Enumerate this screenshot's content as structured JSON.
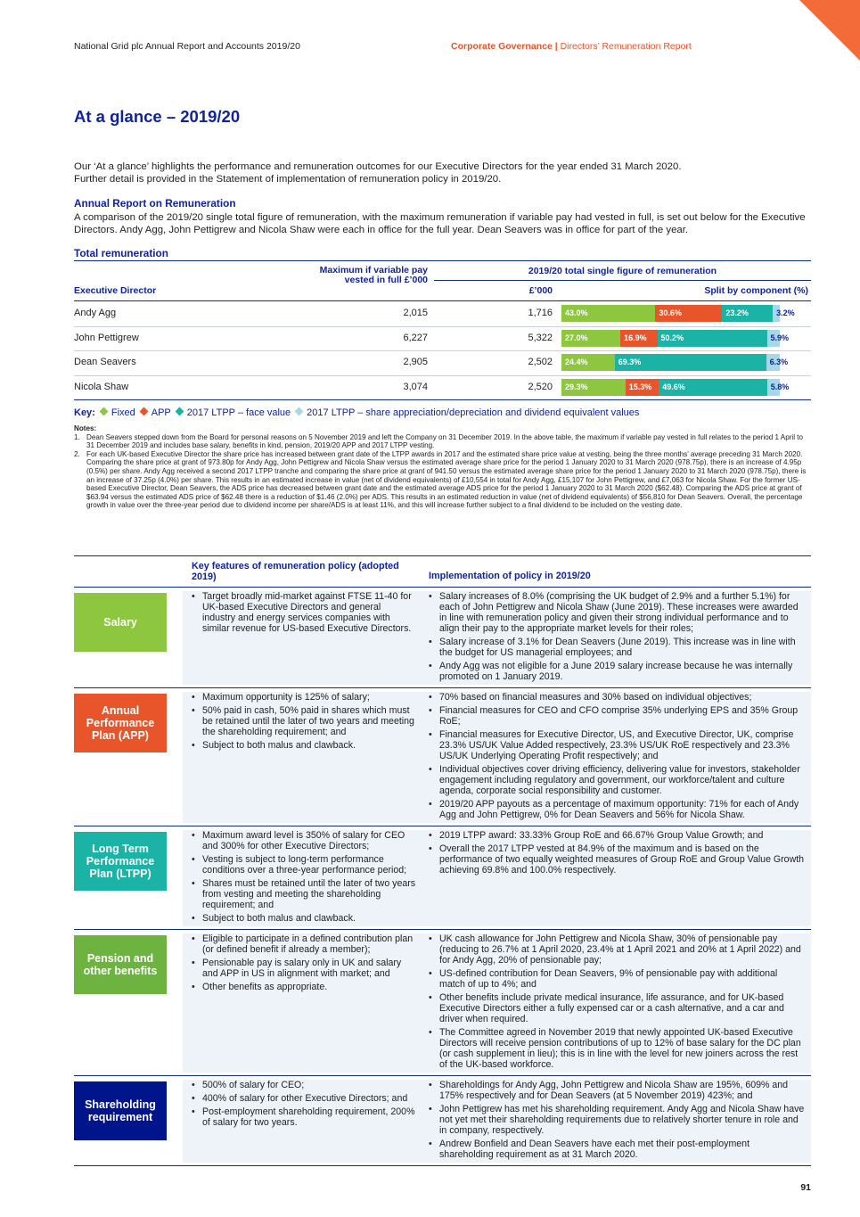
{
  "header": {
    "left": "National Grid plc Annual Report and Accounts 2019/20",
    "section": "Corporate Governance",
    "separator": "|",
    "subsection": "Directors’ Remuneration Report"
  },
  "title": "At a glance – 2019/20",
  "intro": [
    "Our ‘At a glance’ highlights the performance and remuneration outcomes for our Executive Directors for the year ended 31 March 2020.",
    "Further detail is provided in the Statement of implementation of remuneration policy in 2019/20."
  ],
  "annual_report": {
    "heading": "Annual Report on Remuneration",
    "text": "A comparison of the 2019/20 single total figure of remuneration, with the maximum remuneration if variable pay had vested in full, is set out below for the Executive Directors. Andy Agg, John Pettigrew and Nicola Shaw were each in office for the full year. Dean Seavers was in office for part of the year."
  },
  "remuneration": {
    "heading": "Total remuneration",
    "columns": {
      "director": "Executive Director",
      "maximum": "Maximum if variable pay vested in full £’000",
      "group": "2019/20 total single figure of remuneration",
      "total": "£’000",
      "split": "Split by component (%)"
    },
    "rows": [
      {
        "name": "Andy Agg",
        "maximum": "2,015",
        "total": "1,716",
        "split": [
          43.0,
          30.6,
          23.2,
          3.2
        ],
        "split_labels": [
          "43.0%",
          "30.6%",
          "23.2%",
          "3.2%"
        ]
      },
      {
        "name": "John Pettigrew",
        "maximum": "6,227",
        "total": "5,322",
        "split": [
          27.0,
          16.9,
          50.2,
          5.9
        ],
        "split_labels": [
          "27.0%",
          "16.9%",
          "50.2%",
          "5.9%"
        ]
      },
      {
        "name": "Dean Seavers",
        "maximum": "2,905",
        "total": "2,502",
        "split": [
          24.4,
          null,
          69.3,
          6.3
        ],
        "split_labels": [
          "24.4%",
          null,
          "69.3%",
          "6.3%"
        ]
      },
      {
        "name": "Nicola Shaw",
        "maximum": "3,074",
        "total": "2,520",
        "split": [
          29.3,
          15.3,
          49.6,
          5.8
        ],
        "split_labels": [
          "29.3%",
          "15.3%",
          "49.6%",
          "5.8%"
        ]
      }
    ],
    "key": {
      "label": "Key:",
      "components": [
        {
          "name": "Fixed",
          "color": "#8dc63f"
        },
        {
          "name": "APP",
          "color": "#e8552a"
        },
        {
          "name": "2017 LTPP – face value",
          "color": "#1ab3a6"
        },
        {
          "name": "2017 LTPP – share appreciation/depreciation and dividend equivalent values",
          "color": "#a8d8e8"
        }
      ]
    }
  },
  "notes": {
    "heading": "Notes:",
    "items": [
      {
        "number": "1.",
        "text": "Dean Seavers stepped down from the Board for personal reasons on 5 November 2019 and left the Company on 31 December 2019. In the above table, the maximum if variable pay vested in full relates to the period 1 April to 31 December 2019 and includes base salary, benefits in kind, pension, 2019/20 APP and 2017 LTPP vesting."
      },
      {
        "number": "2.",
        "text": "For each UK-based Executive Director the share price has increased between grant date of the LTPP awards in 2017 and the estimated share price value at vesting, being the three months’ average preceding 31 March 2020. Comparing the share price at grant of 973.80p for Andy Agg, John Pettigrew and Nicola Shaw versus the estimated average share price for the period 1 January 2020 to 31 March 2020 (978.75p), there is an increase of 4.95p (0.5%) per share. Andy Agg received a second 2017 LTPP tranche and comparing the share price at grant of 941.50 versus the estimated average share price for the period 1 January 2020 to 31 March 2020 (978.75p), there is an increase of 37.25p (4.0%) per share. This results in an estimated increase in value (net of dividend equivalents) of £10,554 in total for Andy Agg, £15,107 for John Pettigrew, and £7,063 for Nicola Shaw. For the former US-based Executive Director, Dean Seavers, the ADS price has decreased between grant date and the estimated average ADS price for the period 1 January 2020 to 31 March 2020 ($62.48). Comparing the ADS price at grant of $63.94 versus the estimated ADS price of $62.48 there is a reduction of $1.46 (2.0%) per ADS. This results in an estimated reduction in value (net of dividend equivalents) of $56,810 for Dean Seavers. Overall, the percentage growth in value over the three-year period due to dividend income per share/ADS is at least 11%, and this will increase further subject to a final dividend to be included on the vesting date."
      }
    ]
  },
  "policy": {
    "columns": {
      "features": "Key features of remuneration policy (adopted 2019)",
      "implementation": "Implementation of policy in 2019/20"
    },
    "rows": [
      {
        "label": "Salary",
        "color": "#8dc63f",
        "features": [
          "Target broadly mid-market against FTSE 11-40 for UK-based Executive Directors and general industry and energy services companies with similar revenue for US-based Executive Directors."
        ],
        "implementation": [
          "Salary increases of 8.0% (comprising the UK budget of 2.9% and a further 5.1%) for each of John Pettigrew and Nicola Shaw (June 2019). These increases were awarded in line with remuneration policy and given their strong individual performance and to align their pay to the appropriate market levels for their roles;",
          "Salary increase of 3.1% for Dean Seavers (June 2019). This increase was in line with the budget for US managerial employees; and",
          "Andy Agg was not eligible for a June 2019 salary increase because he was internally promoted on 1 January 2019."
        ]
      },
      {
        "label": "Annual Performance Plan (APP)",
        "color": "#e8552a",
        "features": [
          "Maximum opportunity is 125% of salary;",
          "50% paid in cash, 50% paid in shares which must be retained until the later of two years and meeting the shareholding requirement; and",
          "Subject to both malus and clawback."
        ],
        "implementation": [
          "70% based on financial measures and 30% based on individual objectives;",
          "Financial measures for CEO and CFO comprise 35% underlying EPS and 35% Group RoE;",
          "Financial measures for Executive Director, US, and Executive Director, UK, comprise 23.3% US/UK Value Added respectively, 23.3% US/UK RoE respectively and 23.3% US/UK Underlying Operating Profit respectively; and",
          "Individual objectives cover driving efficiency, delivering value for investors, stakeholder engagement including regulatory and government, our workforce/talent and culture agenda, corporate social responsibility and customer.",
          "2019/20 APP payouts as a percentage of maximum opportunity: 71% for each of Andy Agg and John Pettigrew, 0% for Dean Seavers and 56% for Nicola Shaw."
        ]
      },
      {
        "label": "Long Term Performance Plan (LTPP)",
        "color": "#1ab3a6",
        "features": [
          "Maximum award level is 350% of salary for CEO and 300% for other Executive Directors;",
          "Vesting is subject to long-term performance conditions over a three-year performance period;",
          "Shares must be retained until the later of two years from vesting and meeting the shareholding requirement; and",
          "Subject to both malus and clawback."
        ],
        "implementation": [
          "2019 LTPP award: 33.33% Group RoE and 66.67% Group Value Growth; and",
          "Overall the 2017 LTPP vested at 84.9% of the maximum and is based on the performance of two equally weighted measures of Group RoE and Group Value Growth achieving 69.8% and 100.0% respectively."
        ]
      },
      {
        "label": "Pension and other benefits",
        "color": "#6cb43f",
        "features": [
          "Eligible to participate in a defined contribution plan (or defined benefit if already a member);",
          "Pensionable pay is salary only in UK and salary and APP in US in alignment with market; and",
          "Other benefits as appropriate."
        ],
        "implementation": [
          "UK cash allowance for John Pettigrew and Nicola Shaw, 30% of pensionable pay (reducing to 26.7% at 1 April 2020, 23.4% at 1 April 2021 and 20% at 1 April 2022) and for Andy Agg, 20% of pensionable pay;",
          "US-defined contribution for Dean Seavers, 9% of pensionable pay with additional match of up to 4%; and",
          "Other benefits include private medical insurance, life assurance, and for UK-based Executive Directors either a fully expensed car or a cash alternative, and a car and driver when required.",
          "The Committee agreed in November 2019 that newly appointed UK-based Executive Directors will receive pension contributions of up to 12% of base salary for the DC plan (or cash supplement in lieu); this is in line with the level for new joiners across the rest of the UK-based workforce."
        ]
      },
      {
        "label": "Shareholding requirement",
        "color": "#00148c",
        "features": [
          "500% of salary for CEO;",
          "400% of salary for other Executive Directors; and",
          "Post-employment shareholding requirement, 200% of salary for two years."
        ],
        "implementation": [
          "Shareholdings for Andy Agg, John Pettigrew and Nicola Shaw are 195%, 609% and 175% respectively and for Dean Seavers (at 5 November 2019) 423%; and",
          "John Pettigrew has met his shareholding requirement. Andy Agg and Nicola Shaw have not yet met their shareholding requirements due to relatively shorter tenure in role and in company, respectively.",
          "Andrew Bonfield and Dean Seavers have each met their post-employment shareholding requirement as at 31 March 2020."
        ]
      }
    ]
  },
  "page_number": "91"
}
